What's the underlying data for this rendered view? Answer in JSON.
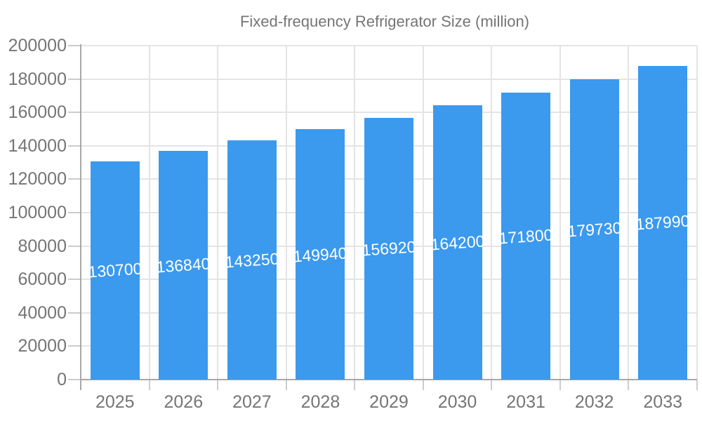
{
  "legend": {
    "label": "Fixed-frequency Refrigerator Size (million)"
  },
  "chart_data": {
    "type": "bar",
    "title": "",
    "legend": [
      "Fixed-frequency Refrigerator Size (million)"
    ],
    "legend_position": "top",
    "categories": [
      "2025",
      "2026",
      "2027",
      "2028",
      "2029",
      "2030",
      "2031",
      "2032",
      "2033"
    ],
    "values": [
      130700,
      136840,
      143250,
      149940,
      156920,
      164200,
      171800,
      179730,
      187990
    ],
    "bar_labels": [
      "130700",
      "136840",
      "143250",
      "149940",
      "156920",
      "164200",
      "171800",
      "179730",
      "187990"
    ],
    "xlabel": "",
    "ylabel": "",
    "ylim": [
      0,
      200000
    ],
    "ytick_step": 20000,
    "yticks": [
      0,
      20000,
      40000,
      60000,
      80000,
      100000,
      120000,
      140000,
      160000,
      180000,
      200000
    ],
    "ytick_labels": [
      "0",
      "20000",
      "40000",
      "60000",
      "80000",
      "100000",
      "120000",
      "140000",
      "160000",
      "180000",
      "200000"
    ],
    "grid": true,
    "colors": {
      "bar": "#3B99EE",
      "bar_label_text": "#FFFFFF",
      "axis_text": "#757575",
      "legend_text": "#757575",
      "grid_line": "#E4E4E4",
      "axis_line": "#A8A8A8",
      "tick": "#CCCCCC",
      "background": "#FFFFFF"
    }
  }
}
